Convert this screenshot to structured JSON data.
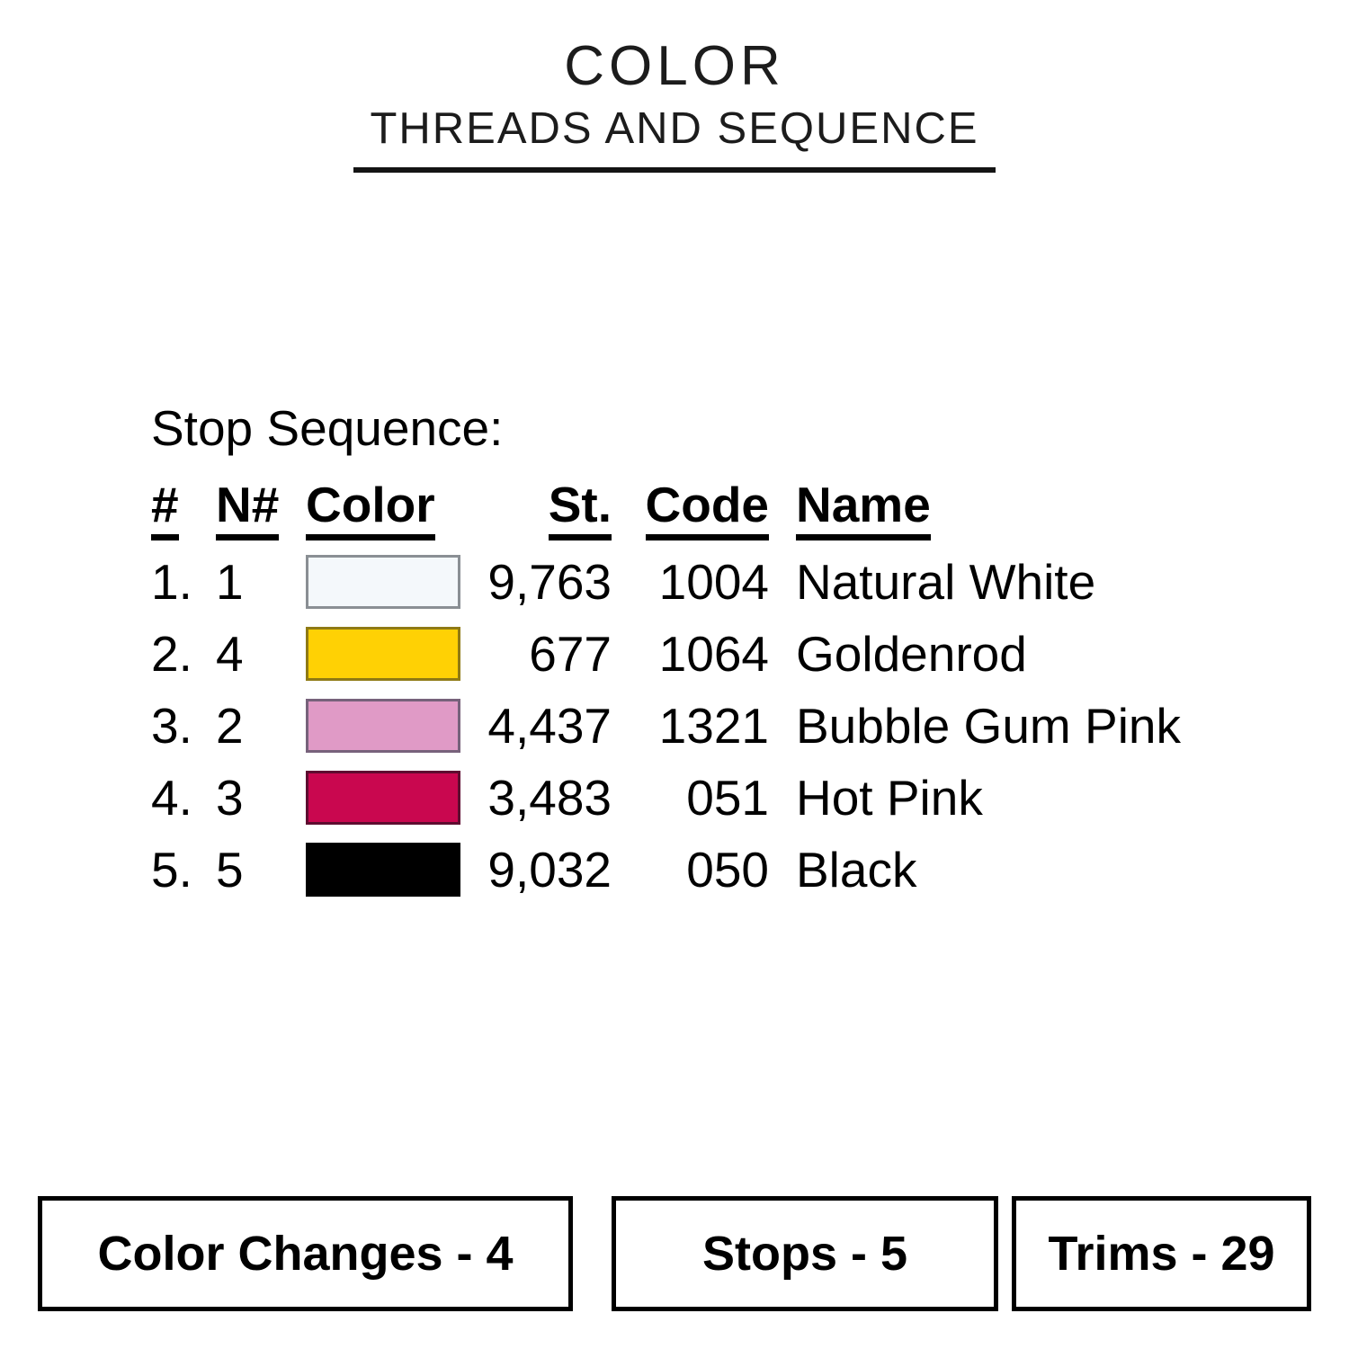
{
  "title": {
    "line1": "COLOR",
    "line2": "THREADS AND SEQUENCE"
  },
  "table": {
    "heading": "Stop Sequence:",
    "columns": [
      "#",
      "N#",
      "Color",
      "St.",
      "Code",
      "Name"
    ],
    "rows": [
      {
        "seq": "1.",
        "n": "1",
        "swatch": "#F4F8FB",
        "border": "#8A8F94",
        "st": "9,763",
        "code": "1004",
        "name": "Natural White"
      },
      {
        "seq": "2.",
        "n": "4",
        "swatch": "#FFD104",
        "border": "#8F7A14",
        "st": "677",
        "code": "1064",
        "name": "Goldenrod"
      },
      {
        "seq": "3.",
        "n": "2",
        "swatch": "#E09AC6",
        "border": "#77627B",
        "st": "4,437",
        "code": "1321",
        "name": "Bubble Gum Pink"
      },
      {
        "seq": "4.",
        "n": "3",
        "swatch": "#C9074F",
        "border": "#5E0C30",
        "st": "3,483",
        "code": "051",
        "name": "Hot Pink"
      },
      {
        "seq": "5.",
        "n": "5",
        "swatch": "#000000",
        "border": "#000000",
        "st": "9,032",
        "code": "050",
        "name": "Black"
      }
    ]
  },
  "footer": {
    "boxes": [
      {
        "label": "Color Changes - 4"
      },
      {
        "label": "Stops - 5"
      },
      {
        "label": "Trims - 29"
      }
    ]
  }
}
